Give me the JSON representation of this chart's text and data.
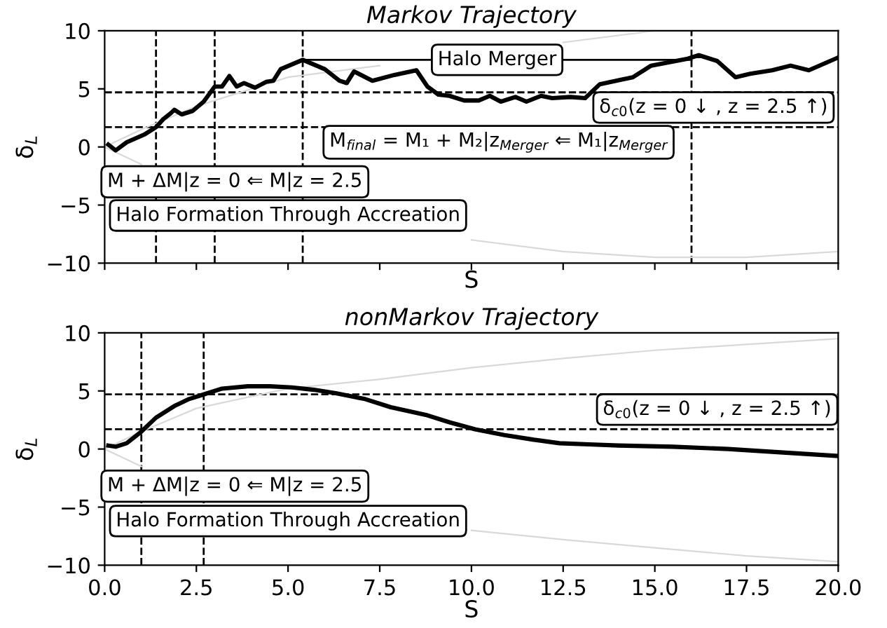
{
  "chart_data": [
    {
      "type": "line",
      "title": "Markov Trajectory",
      "xlabel": "S",
      "ylabel": "δ$_{L}$",
      "xlim": [
        0,
        20
      ],
      "ylim": [
        -10,
        10
      ],
      "xticks": [
        0,
        2.5,
        5,
        7.5,
        10,
        12.5,
        15,
        17.5,
        20
      ],
      "yticks": [
        -10,
        -5,
        0,
        5,
        10
      ],
      "tick_labels": "y",
      "grid": false,
      "legend": false,
      "series": [
        {
          "color": "#d9d9d9",
          "x": [
            0,
            1,
            2.5,
            5,
            7.5,
            10,
            12.5,
            15,
            17.5,
            20
          ],
          "values": [
            0,
            1.5,
            3.5,
            6,
            7,
            null,
            9,
            10,
            10,
            10
          ]
        },
        {
          "color": "#d9d9d9",
          "x": [
            0,
            1,
            2.5,
            5,
            7.5,
            10,
            12.5,
            15,
            17.5,
            20
          ],
          "values": [
            0,
            -1.5,
            null,
            null,
            null,
            -8,
            -9,
            -9.5,
            -9.5,
            -9
          ]
        },
        {
          "color": "#000000",
          "x": [
            5.4,
            16.0
          ],
          "values": [
            7.5,
            7.5
          ]
        },
        {
          "color": "#000000",
          "x": [
            0.1,
            0.3,
            0.6,
            1.1,
            1.4,
            1.6,
            1.8,
            1.9,
            2.1,
            2.4,
            2.7,
            3.0,
            3.2,
            3.4,
            3.6,
            3.8,
            4.1,
            4.4,
            4.6,
            4.8,
            5.4,
            6.0,
            6.4,
            6.6,
            6.8,
            7.3,
            7.9,
            8.5,
            8.8,
            9.1,
            9.4,
            9.8,
            10.2,
            10.5,
            10.8,
            11.2,
            11.5,
            11.9,
            12.2,
            12.7,
            13.1,
            13.5,
            14.1,
            14.4,
            14.9,
            15.9,
            16.2,
            16.7,
            17.2,
            17.6,
            18.2,
            18.7,
            19.2,
            20.0
          ],
          "values": [
            0.2,
            -0.3,
            0.4,
            1.1,
            1.7,
            2.4,
            2.9,
            3.2,
            2.8,
            3.1,
            3.9,
            5.2,
            5.2,
            6.1,
            5.2,
            5.5,
            5.1,
            5.6,
            5.7,
            6.7,
            7.5,
            6.7,
            5.7,
            5.5,
            6.5,
            5.7,
            6.2,
            6.6,
            5.2,
            4.5,
            4.4,
            4.0,
            4.0,
            4.4,
            3.9,
            4.3,
            3.9,
            4.4,
            4.2,
            4.3,
            4.2,
            5.4,
            5.8,
            6.0,
            7.0,
            7.6,
            7.9,
            7.4,
            6.0,
            6.3,
            6.6,
            7.0,
            6.6,
            7.7
          ]
        }
      ],
      "ref_lines": [
        {
          "axis": "y",
          "value": 4.7,
          "line_style": "dashed",
          "color": "#000000"
        },
        {
          "axis": "y",
          "value": 1.7,
          "line_style": "dashed",
          "color": "#000000"
        },
        {
          "axis": "x",
          "value": 1.4,
          "line_style": "dashed",
          "color": "#000000"
        },
        {
          "axis": "x",
          "value": 3.0,
          "line_style": "dashed",
          "color": "#000000"
        },
        {
          "axis": "x",
          "value": 5.4,
          "line_style": "dashed",
          "color": "#000000"
        },
        {
          "axis": "x",
          "value": 16.0,
          "line_style": "dashed",
          "color": "#000000"
        }
      ],
      "annotations": [
        {
          "text": "Halo Merger",
          "x": 10.7,
          "y": 7.5
        },
        "δ$_{c0}$(z = 0 ↓ , z = 2.5 ↑)",
        "M$_{final}$ = M₁ + M₂|z$_{Merger}$ ⇐ M₁|z$_{Merger}$",
        "M + ΔM|z = 0 ⇐ M|z = 2.5",
        "Halo Formation Through Accreation"
      ]
    },
    {
      "type": "line",
      "title": "nonMarkov Trajectory",
      "xlabel": "S",
      "ylabel": "δ$_{L}$",
      "xlim": [
        0,
        20
      ],
      "ylim": [
        -10,
        10
      ],
      "xticks": [
        {
          "value": 0,
          "label": "0.0"
        },
        2.5,
        {
          "value": 5,
          "label": "5.0"
        },
        7.5,
        {
          "value": 10,
          "label": "10.0"
        },
        12.5,
        {
          "value": 15,
          "label": "15.0"
        },
        17.5,
        {
          "value": 20,
          "label": "20.0"
        }
      ],
      "yticks": [
        -10,
        -5,
        0,
        5,
        10
      ],
      "grid": false,
      "legend": false,
      "series": [
        {
          "color": "#d9d9d9",
          "x": [
            0,
            1,
            2.5,
            5,
            7.5,
            10,
            12.5,
            15,
            17.5,
            20
          ],
          "values": [
            0,
            1.5,
            3.5,
            5.2,
            6,
            7,
            7.8,
            8.5,
            9,
            9.5
          ]
        },
        {
          "color": "#d9d9d9",
          "x": [
            0,
            1,
            2.5,
            5,
            7.5,
            10,
            12.5,
            15,
            17.5,
            20
          ],
          "values": [
            0,
            -1.5,
            null,
            null,
            null,
            -7,
            -7.8,
            -8.5,
            -9.2,
            -9.7
          ]
        },
        {
          "color": "#000000",
          "x": [
            0.1,
            0.3,
            0.6,
            1.0,
            1.4,
            1.9,
            2.3,
            2.7,
            3.2,
            3.9,
            4.5,
            5.1,
            5.7,
            6.3,
            7.1,
            7.8,
            8.8,
            9.4,
            10.1,
            10.9,
            11.7,
            12.4,
            13.2,
            14.0,
            15.5,
            17.0,
            18.5,
            20.0
          ],
          "values": [
            0.3,
            0.2,
            0.5,
            1.5,
            2.7,
            3.7,
            4.3,
            4.7,
            5.2,
            5.4,
            5.4,
            5.3,
            5.1,
            4.8,
            4.3,
            3.6,
            2.9,
            2.3,
            1.7,
            1.2,
            0.8,
            0.5,
            0.4,
            0.3,
            0.2,
            0.0,
            -0.3,
            -0.6
          ]
        }
      ],
      "ref_lines": [
        {
          "axis": "y",
          "value": 4.7,
          "line_style": "dashed",
          "color": "#000000"
        },
        {
          "axis": "y",
          "value": 1.7,
          "line_style": "dashed",
          "color": "#000000"
        },
        {
          "axis": "x",
          "value": 1.0,
          "line_style": "dashed",
          "color": "#000000"
        },
        {
          "axis": "x",
          "value": 2.7,
          "line_style": "dashed",
          "color": "#000000"
        }
      ],
      "annotations": [
        "δ$_{c0}$(z = 0 ↓ , z = 2.5 ↑)",
        "M + ΔM|z = 0 ⇐ M|z = 2.5",
        "Halo Formation Through Accreation"
      ]
    }
  ]
}
